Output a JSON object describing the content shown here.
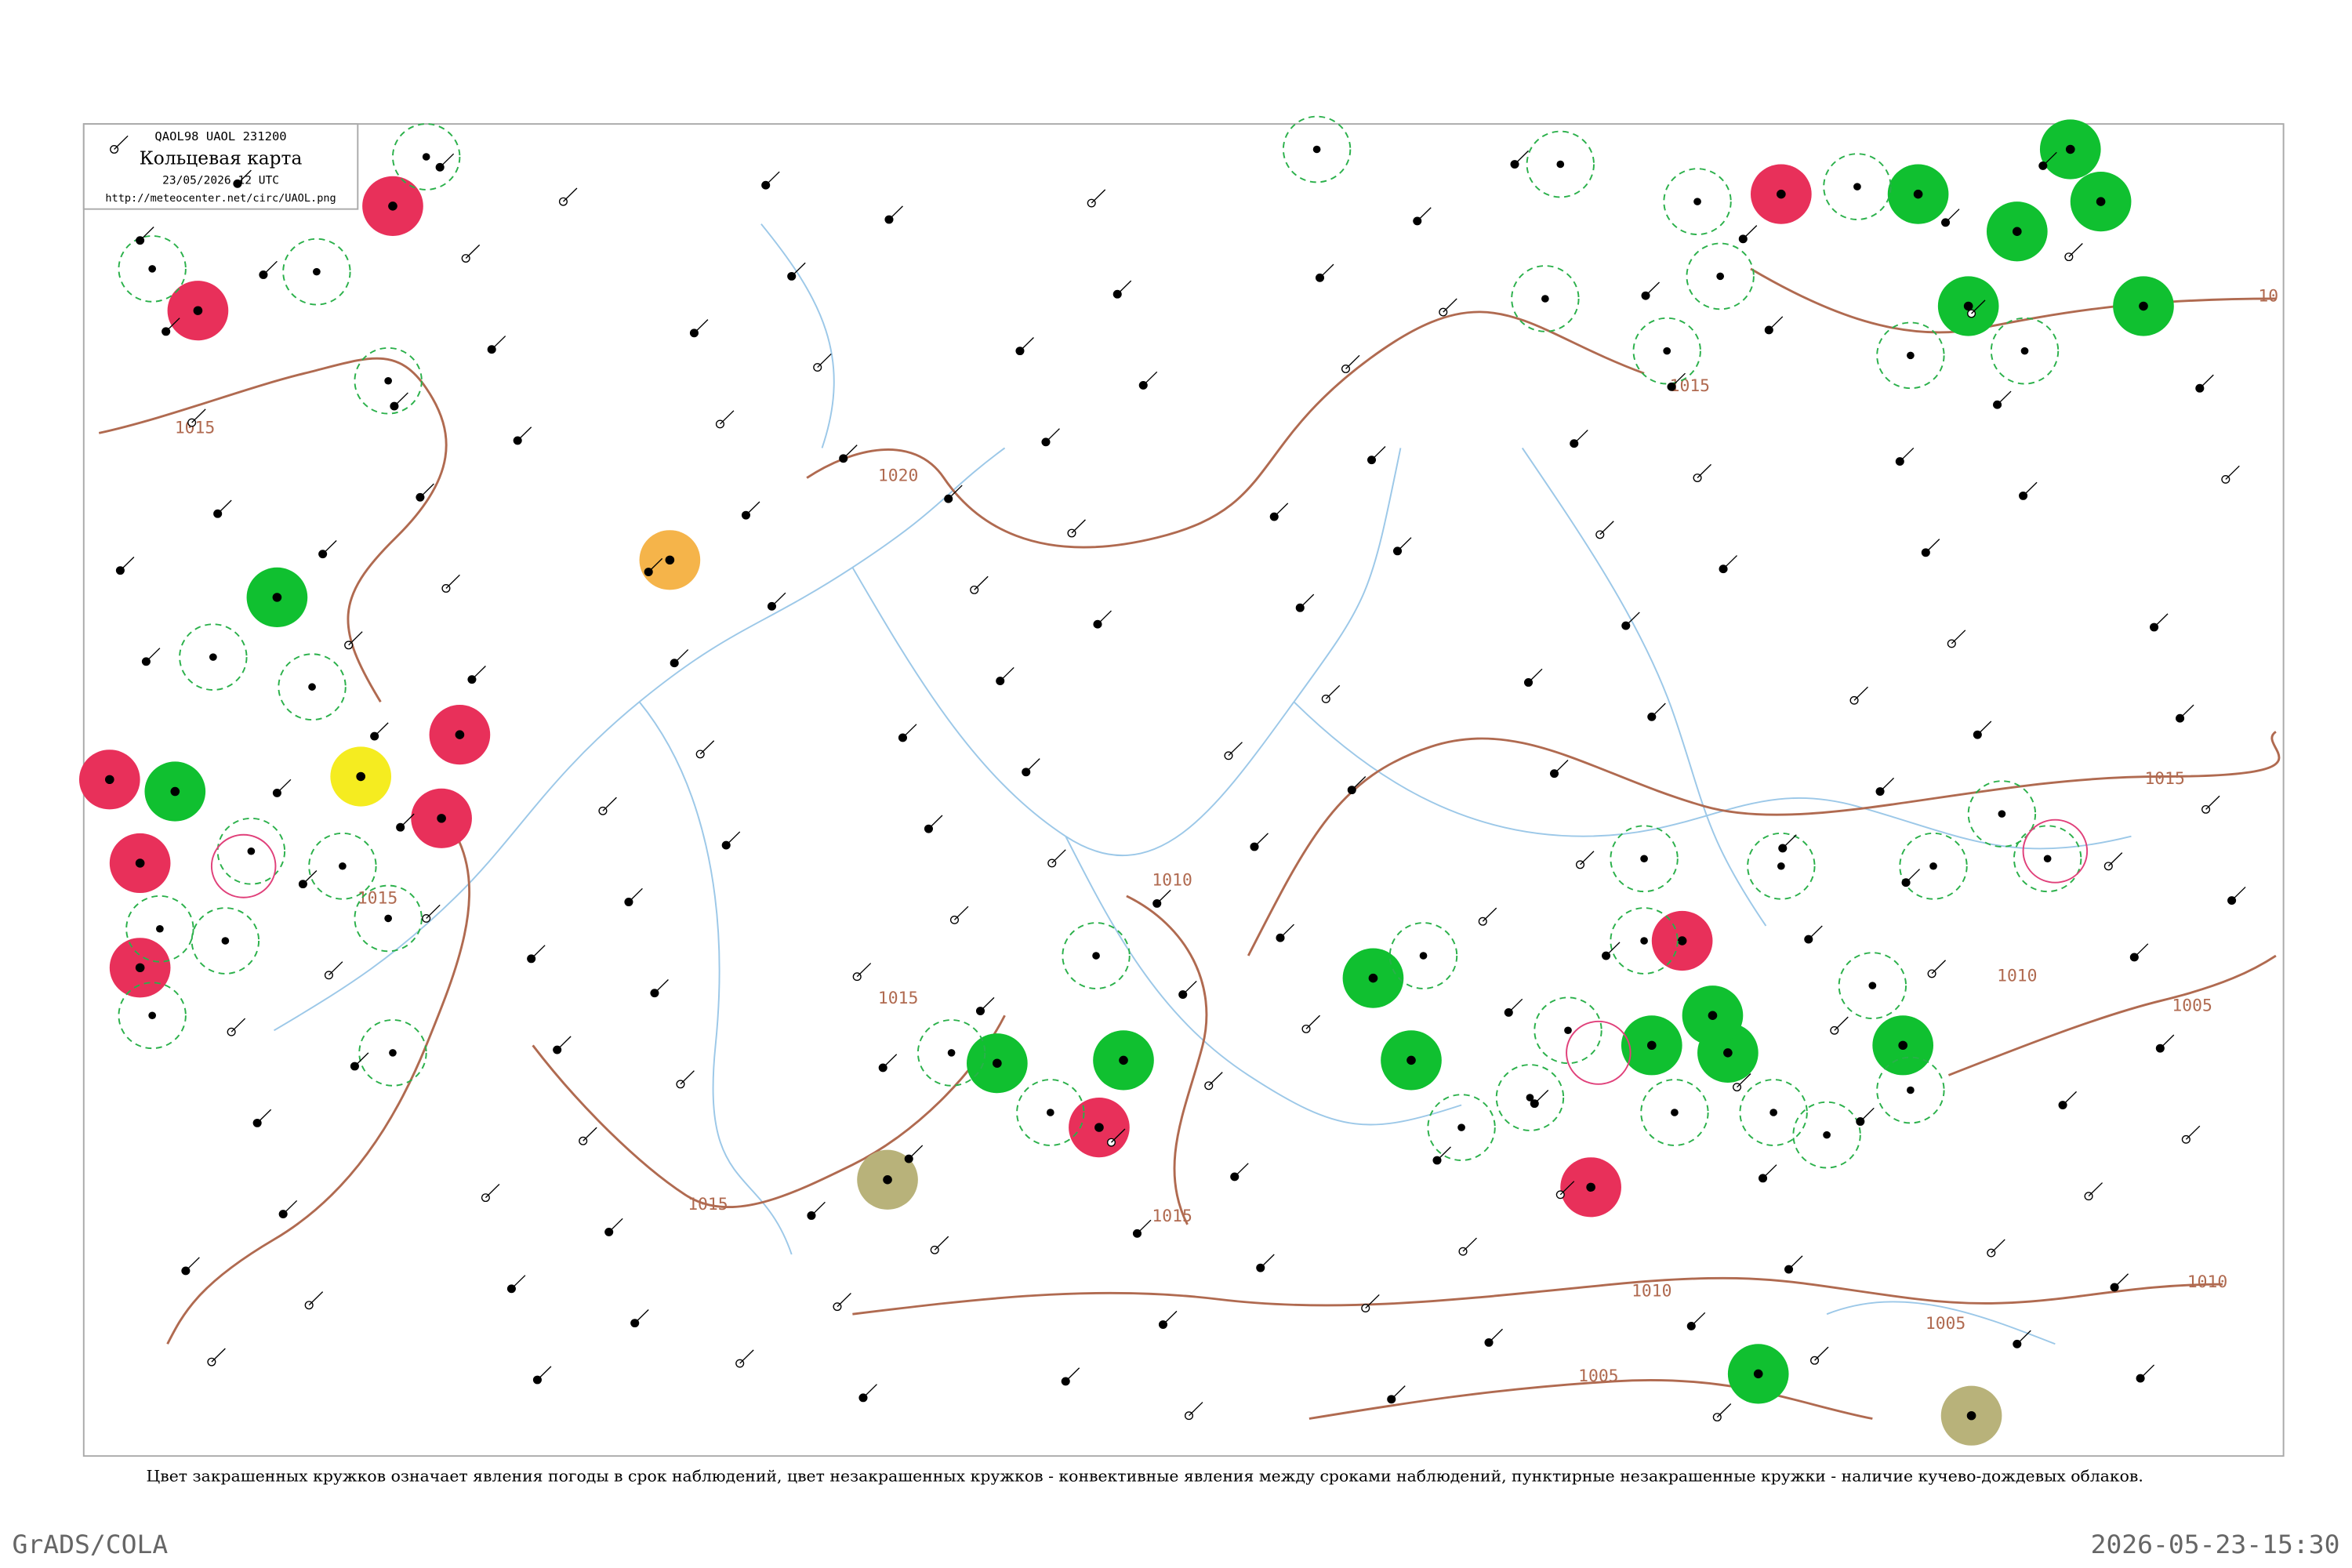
{
  "header": {
    "code": "QAOL98  UAOL  231200",
    "title": "Кольцевая карта",
    "date": "23/05/2026 12 UTC",
    "url": "http://meteocenter.net/circ/UAOL.png"
  },
  "isobar_labels": [
    1015,
    1020,
    1015,
    1015,
    1015,
    1015,
    1015,
    1010,
    1010,
    1005,
    1015,
    1010,
    1005,
    1010,
    1005,
    10
  ],
  "caption": "Цвет закрашенных кружков означает явления погоды в срок наблюдений, цвет незакрашенных кружков - конвективные явления между сроками наблюдений, пунктирные незакрашенные кружки - наличие кучево-дождевых облаков.",
  "footer": {
    "left": "GrADS/COLA",
    "right": "2026-05-23-15:30"
  }
}
